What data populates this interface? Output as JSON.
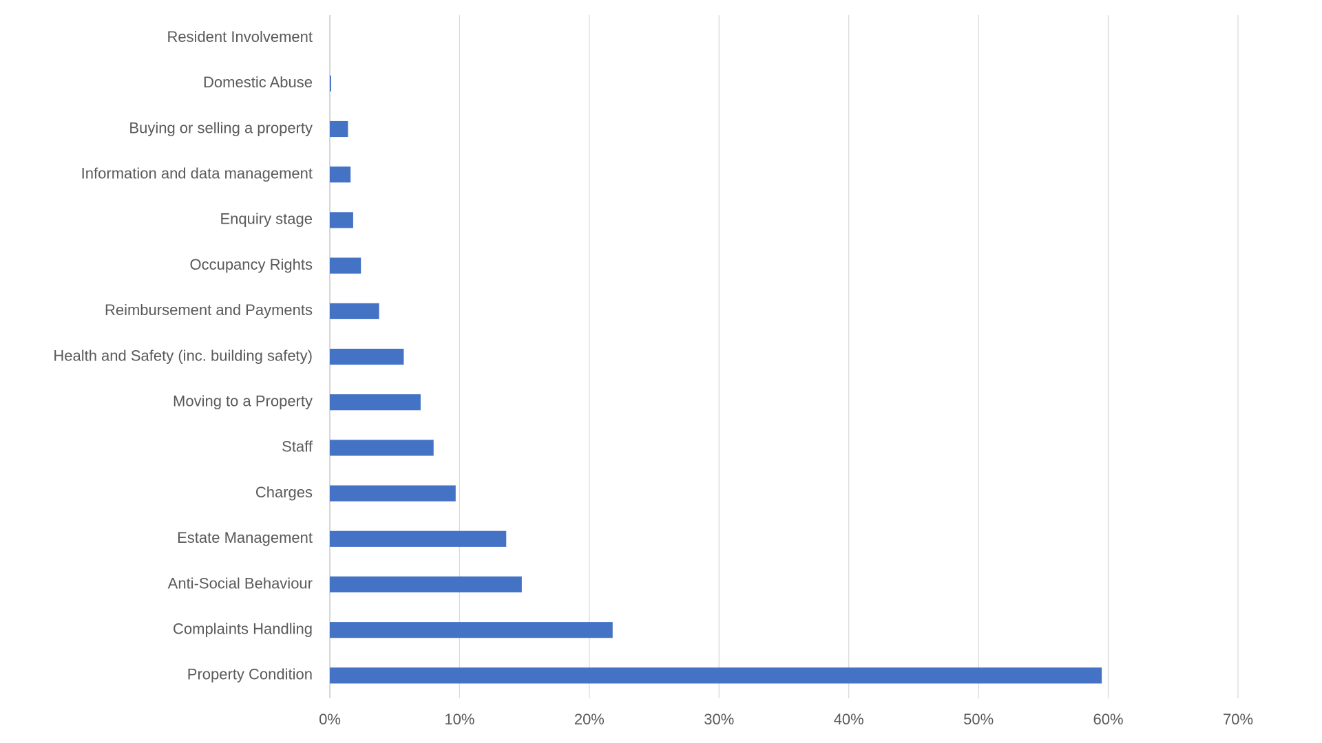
{
  "chart_data": {
    "type": "bar",
    "orientation": "horizontal",
    "categories": [
      "Resident Involvement",
      "Domestic Abuse",
      "Buying or selling a property",
      "Information and data management",
      "Enquiry stage",
      "Occupancy Rights",
      "Reimbursement and Payments",
      "Health and Safety (inc. building safety)",
      "Moving to a Property",
      "Staff",
      "Charges",
      "Estate Management",
      "Anti-Social Behaviour",
      "Complaints Handling",
      "Property Condition"
    ],
    "values": [
      0,
      0.1,
      1.4,
      1.6,
      1.8,
      2.4,
      3.8,
      5.7,
      7.0,
      8.0,
      9.7,
      13.6,
      14.8,
      21.8,
      59.5
    ],
    "color": "#4472c4",
    "xlim": [
      0,
      70
    ],
    "xticks": [
      {
        "value": 0,
        "label": "0%"
      },
      {
        "value": 10,
        "label": "10%"
      },
      {
        "value": 20,
        "label": "20%"
      },
      {
        "value": 30,
        "label": "30%"
      },
      {
        "value": 40,
        "label": "40%"
      },
      {
        "value": 50,
        "label": "50%"
      },
      {
        "value": 60,
        "label": "60%"
      },
      {
        "value": 70,
        "label": "70%"
      }
    ],
    "grid": true
  }
}
